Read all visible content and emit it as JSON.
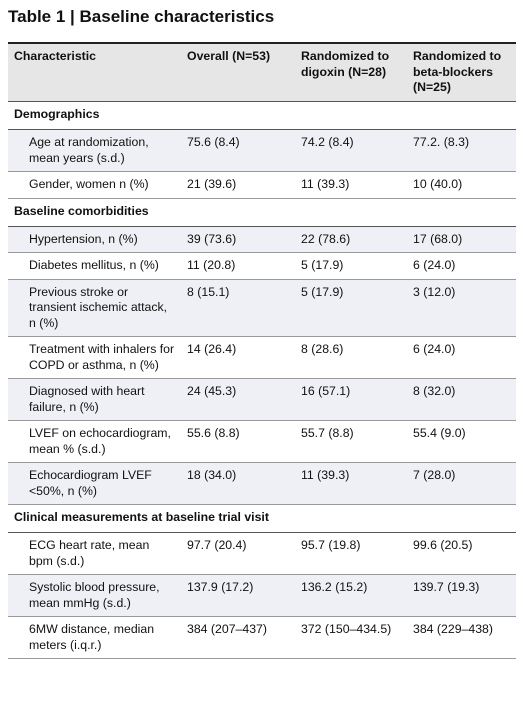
{
  "title": "Table 1 | Baseline characteristics",
  "table": {
    "header": [
      "Characteristic",
      "Overall (N=53)",
      "Randomized to digoxin (N=28)",
      "Randomized to beta-blockers (N=25)"
    ],
    "sections": [
      {
        "heading": "Demographics",
        "rows": [
          [
            "Age at randomization, mean years (s.d.)",
            "75.6 (8.4)",
            "74.2 (8.4)",
            "77.2. (8.3)"
          ],
          [
            "Gender, women n (%)",
            "21 (39.6)",
            "11 (39.3)",
            "10 (40.0)"
          ]
        ]
      },
      {
        "heading": "Baseline comorbidities",
        "rows": [
          [
            "Hypertension, n (%)",
            "39 (73.6)",
            "22 (78.6)",
            "17 (68.0)"
          ],
          [
            "Diabetes mellitus, n (%)",
            "11 (20.8)",
            "5 (17.9)",
            "6 (24.0)"
          ],
          [
            "Previous stroke or transient ischemic attack, n (%)",
            "8 (15.1)",
            "5 (17.9)",
            "3 (12.0)"
          ],
          [
            "Treatment with inhalers for COPD or asthma, n (%)",
            "14 (26.4)",
            "8 (28.6)",
            "6 (24.0)"
          ],
          [
            "Diagnosed with heart failure, n (%)",
            "24 (45.3)",
            "16 (57.1)",
            "8 (32.0)"
          ],
          [
            "LVEF on echocardiogram, mean % (s.d.)",
            "55.6 (8.8)",
            "55.7 (8.8)",
            "55.4 (9.0)"
          ],
          [
            "Echocardiogram LVEF <50%, n (%)",
            "18 (34.0)",
            "11 (39.3)",
            "7 (28.0)"
          ]
        ]
      },
      {
        "heading": "Clinical measurements at baseline trial visit",
        "rows": [
          [
            "ECG heart rate, mean bpm (s.d.)",
            "97.7 (20.4)",
            "95.7 (19.8)",
            "99.6 (20.5)"
          ],
          [
            "Systolic blood pressure, mean mmHg (s.d.)",
            "137.9 (17.2)",
            "136.2 (15.2)",
            "139.7 (19.3)"
          ],
          [
            "6MW distance, median meters (i.q.r.)",
            "384 (207–437)",
            "372 (150–434.5)",
            "384 (229–438)"
          ]
        ]
      }
    ]
  }
}
